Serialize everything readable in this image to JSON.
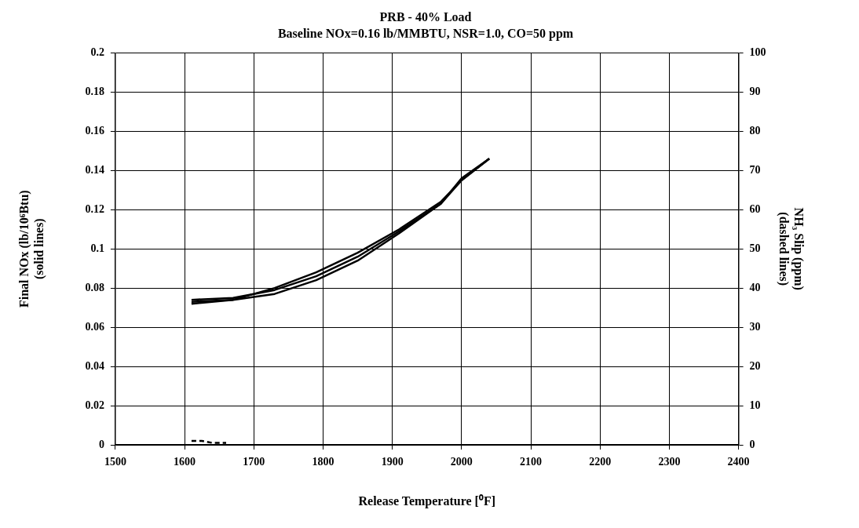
{
  "chart_data": {
    "type": "line",
    "title": "PRB - 40% Load",
    "subtitle": "Baseline NOx=0.16 lb/MMBTU, NSR=1.0, CO=50 ppm",
    "xlabel": "Release Temperature [⁰F]",
    "ylabel": "Final NOx (lb/10⁶Btu)\n(solid lines)",
    "y2label": "NH₃ Slip (ppm)\n(dashed lines)",
    "series": [
      {
        "color": "#000000",
        "line_style": "solid",
        "x": [
          1610,
          1670,
          1730,
          1790,
          1850,
          1910,
          1970,
          2000,
          2040
        ],
        "values": [
          0.073,
          0.074,
          0.08,
          0.088,
          0.098,
          0.11,
          0.124,
          0.135,
          0.146
        ]
      },
      {
        "color": "#000000",
        "line_style": "solid",
        "x": [
          1610,
          1670,
          1730,
          1790,
          1850,
          1910,
          1970,
          2000,
          2040
        ],
        "values": [
          0.072,
          0.074,
          0.077,
          0.084,
          0.094,
          0.108,
          0.123,
          0.136,
          0.146
        ]
      },
      {
        "color": "#000000",
        "line_style": "solid",
        "x": [
          1610,
          1670,
          1730,
          1790,
          1850,
          1910,
          1970,
          2000,
          2040
        ],
        "values": [
          0.074,
          0.075,
          0.079,
          0.086,
          0.096,
          0.109,
          0.123,
          0.135,
          0.146
        ]
      },
      {
        "color": "#000000",
        "line_style": "dashed",
        "axis": "y2",
        "x": [
          1610,
          1625,
          1640,
          1660
        ],
        "values": [
          1,
          1,
          0.5,
          0.5
        ]
      }
    ],
    "xlim": [
      1500,
      2400
    ],
    "xticks": [
      1500,
      1600,
      1700,
      1800,
      1900,
      2000,
      2100,
      2200,
      2300,
      2400
    ],
    "ylim": [
      0,
      0.2
    ],
    "yticks": [
      0,
      0.02,
      0.04,
      0.06,
      0.08,
      0.1,
      0.12,
      0.14,
      0.16,
      0.18,
      0.2
    ],
    "y2lim": [
      0,
      100
    ],
    "y2ticks": [
      0,
      10,
      20,
      30,
      40,
      50,
      60,
      70,
      80,
      90,
      100
    ],
    "grid": true,
    "legend": false,
    "marker": "none"
  }
}
